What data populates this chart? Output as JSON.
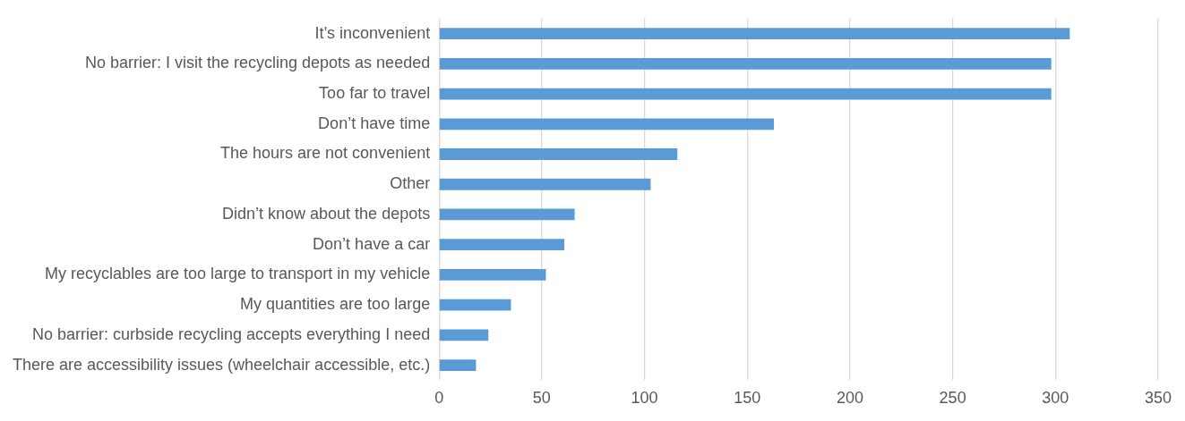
{
  "chart_data": {
    "type": "bar",
    "orientation": "horizontal",
    "categories": [
      "It’s inconvenient",
      "No barrier: I visit the recycling depots as needed",
      "Too far to travel",
      "Don’t have time",
      "The hours are not convenient",
      "Other",
      "Didn’t know about the depots",
      "Don’t have a car",
      "My recyclables are too large to transport in my vehicle",
      "My quantities are too large",
      "No barrier: curbside recycling accepts everything I need",
      "There are accessibility issues (wheelchair accessible, etc.)"
    ],
    "values": [
      307,
      298,
      298,
      163,
      116,
      103,
      66,
      61,
      52,
      35,
      24,
      18
    ],
    "color": "#5b9bd5",
    "xlim": [
      0,
      350
    ],
    "xticks": [
      0,
      50,
      100,
      150,
      200,
      250,
      300,
      350
    ],
    "grid": "x",
    "legend": false
  }
}
